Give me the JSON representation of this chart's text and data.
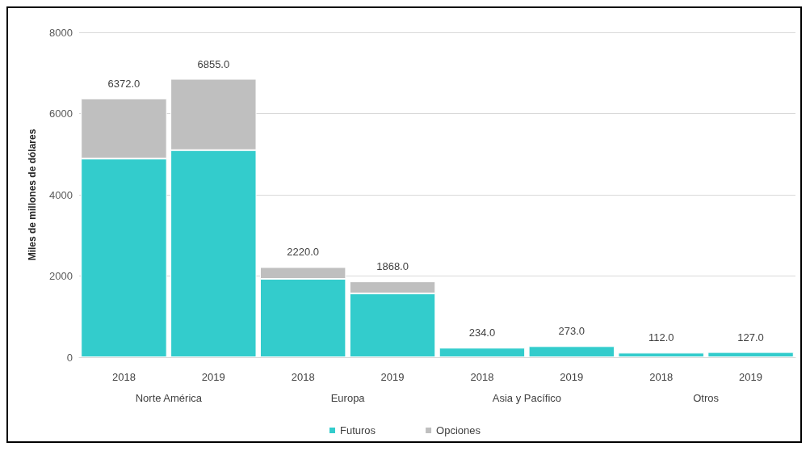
{
  "chart_data": {
    "type": "bar",
    "stacked": true,
    "ylabel": "Miles de millones de dólares",
    "categories": [
      "2018",
      "2019",
      "2018",
      "2019",
      "2018",
      "2019",
      "2018",
      "2019"
    ],
    "annotations": [
      "Norte América",
      "Europa",
      "Asia y Pacífico",
      "Otros"
    ],
    "series": [
      {
        "name": "Futuros",
        "color": "#33cccc",
        "values": [
          4890,
          5100,
          1930,
          1570,
          234,
          273,
          112,
          127
        ]
      },
      {
        "name": "Opciones",
        "color": "#bfbfbf",
        "values": [
          1482,
          1755,
          290,
          298,
          null,
          null,
          null,
          null
        ]
      }
    ],
    "totals": [
      "6372.0",
      "6855.0",
      "2220.0",
      "1868.0",
      "234.0",
      "273.0",
      "112.0",
      "127.0"
    ],
    "ylim": [
      0,
      8000
    ],
    "yticks": [
      0,
      2000,
      4000,
      6000,
      8000
    ],
    "grid": "y",
    "legend": "bottom"
  }
}
